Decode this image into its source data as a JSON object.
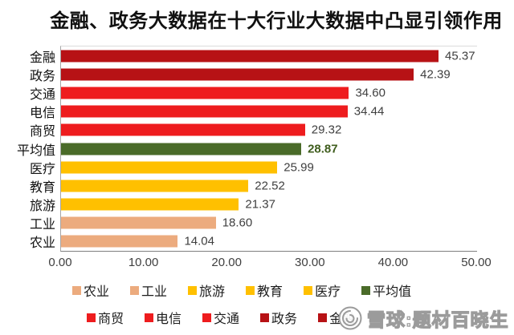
{
  "title": "金融、政务大数据在十大行业大数据中凸显引领作用",
  "palette": {
    "dark_red": "#B71215",
    "red": "#EE1C1E",
    "gold": "#FFC000",
    "salmon": "#ECAB7E",
    "green": "#4A6B29"
  },
  "axis_colors": {
    "left_line": "#a6a6a6",
    "top_line": "#dcdcdc",
    "bottom_line": "#7f7f7f"
  },
  "chart_data": {
    "type": "bar",
    "orientation": "horizontal",
    "title": "金融、政务大数据在十大行业大数据中凸显引领作用",
    "xlabel": "",
    "ylabel": "",
    "grid": false,
    "xlim": [
      0,
      50
    ],
    "x_ticks": [
      "0.00",
      "10.00",
      "20.00",
      "30.00",
      "40.00",
      "50.00"
    ],
    "categories": [
      "金融",
      "政务",
      "交通",
      "电信",
      "商贸",
      "平均值",
      "医疗",
      "教育",
      "旅游",
      "工业",
      "农业"
    ],
    "values": [
      45.37,
      42.39,
      34.6,
      34.44,
      29.32,
      28.87,
      25.99,
      22.52,
      21.37,
      18.6,
      14.04
    ],
    "value_labels": [
      "45.37",
      "42.39",
      "34.60",
      "34.44",
      "29.32",
      "28.87",
      "25.99",
      "22.52",
      "21.37",
      "18.60",
      "14.04"
    ],
    "bar_color_keys": [
      "dark_red",
      "dark_red",
      "red",
      "red",
      "red",
      "green",
      "gold",
      "gold",
      "gold",
      "salmon",
      "salmon"
    ],
    "emphasized_category": "平均值",
    "legend_position": "bottom",
    "legend_rows": [
      [
        {
          "label": "农业",
          "color": "salmon"
        },
        {
          "label": "工业",
          "color": "salmon"
        },
        {
          "label": "旅游",
          "color": "gold"
        },
        {
          "label": "教育",
          "color": "gold"
        },
        {
          "label": "医疗",
          "color": "gold"
        },
        {
          "label": "平均值",
          "color": "green"
        }
      ],
      [
        {
          "label": "商贸",
          "color": "red"
        },
        {
          "label": "电信",
          "color": "red"
        },
        {
          "label": "交通",
          "color": "red"
        },
        {
          "label": "政务",
          "color": "dark_red"
        },
        {
          "label": "金融",
          "color": "dark_red"
        }
      ]
    ]
  },
  "watermark": {
    "logo": "xueqiu-logo",
    "text": "雪球:题材百晓生"
  }
}
